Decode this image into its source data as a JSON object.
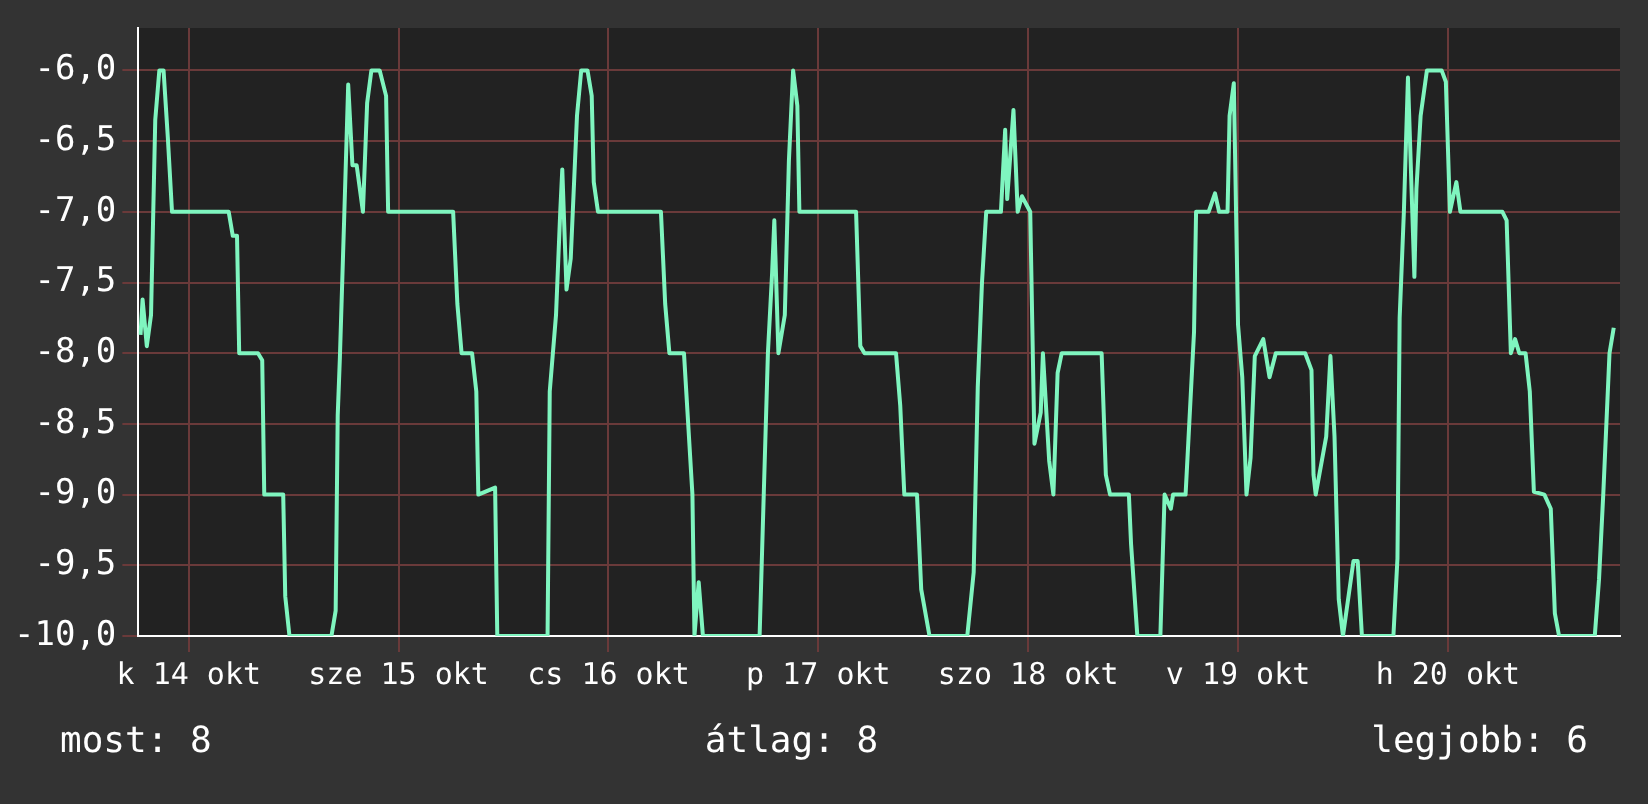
{
  "chart_data": {
    "type": "line",
    "x": [
      "--10-14T06:29",
      "--10-14T06:43",
      "--10-14T07:12",
      "--10-14T07:41",
      "--10-14T08:10",
      "--10-14T08:38",
      "--10-14T09:07",
      "--10-14T09:36",
      "--10-14T10:05",
      "--10-14T16:34",
      "--10-14T17:02",
      "--10-14T17:31",
      "--10-14T17:46",
      "--10-14T19:55",
      "--10-14T20:24",
      "--10-14T20:38",
      "--10-14T22:48",
      "--10-14T23:02",
      "--10-14T23:31",
      "--10-15T04:19",
      "--10-15T04:48",
      "--10-15T05:02",
      "--10-15T05:17",
      "--10-15T05:46",
      "--10-15T06:14",
      "--10-15T06:43",
      "--10-15T07:12",
      "--10-15T07:55",
      "--10-15T08:24",
      "--10-15T08:53",
      "--10-15T09:50",
      "--10-15T10:34",
      "--10-15T10:48",
      "--10-15T18:14",
      "--10-15T18:43",
      "--10-15T19:12",
      "--10-15T20:24",
      "--10-15T20:53",
      "--10-15T21:07",
      "--10-15T23:02",
      "--10-15T23:17",
      "--10-16T05:02",
      "--10-16T05:17",
      "--10-16T06:00",
      "--10-16T06:29",
      "--10-16T06:43",
      "--10-16T07:12",
      "--10-16T07:41",
      "--10-16T08:24",
      "--10-16T08:53",
      "--10-16T09:36",
      "--10-16T10:05",
      "--10-16T10:19",
      "--10-16T10:48",
      "--10-16T18:00",
      "--10-16T18:29",
      "--10-16T18:58",
      "--10-16T20:38",
      "--10-16T21:36",
      "--10-16T21:50",
      "--10-16T22:19",
      "--10-16T22:48",
      "--10-17T05:17",
      "--10-17T05:46",
      "--10-17T06:14",
      "--10-17T06:43",
      "--10-17T06:58",
      "--10-17T07:26",
      "--10-17T08:10",
      "--10-17T08:38",
      "--10-17T09:07",
      "--10-17T09:36",
      "--10-17T09:50",
      "--10-17T16:19",
      "--10-17T16:48",
      "--10-17T17:17",
      "--10-17T20:53",
      "--10-17T21:22",
      "--10-17T21:50",
      "--10-17T23:17",
      "--10-17T23:46",
      "--10-18T00:43",
      "--10-18T05:02",
      "--10-18T05:46",
      "--10-18T06:14",
      "--10-18T06:43",
      "--10-18T07:12",
      "--10-18T08:53",
      "--10-18T09:22",
      "--10-18T09:36",
      "--10-18T10:19",
      "--10-18T10:48",
      "--10-18T11:17",
      "--10-18T12:14",
      "--10-18T12:43",
      "--10-18T13:26",
      "--10-18T13:41",
      "--10-18T14:24",
      "--10-18T14:53",
      "--10-18T15:22",
      "--10-18T15:50",
      "--10-18T20:24",
      "--10-18T20:53",
      "--10-18T21:22",
      "--10-18T23:31",
      "--10-18T23:46",
      "--10-19T00:29",
      "--10-19T03:07",
      "--10-19T03:36",
      "--10-19T04:19",
      "--10-19T04:34",
      "--10-19T06:00",
      "--10-19T06:58",
      "--10-19T07:12",
      "--10-19T08:38",
      "--10-19T09:22",
      "--10-19T09:50",
      "--10-19T10:48",
      "--10-19T11:02",
      "--10-19T11:31",
      "--10-19T12:00",
      "--10-19T12:29",
      "--10-19T12:58",
      "--10-19T13:26",
      "--10-19T13:55",
      "--10-19T14:53",
      "--10-19T15:36",
      "--10-19T16:19",
      "--10-19T19:41",
      "--10-19T20:24",
      "--10-19T20:38",
      "--10-19T20:53",
      "--10-19T22:05",
      "--10-19T22:34",
      "--10-19T23:02",
      "--10-19T23:31",
      "--10-20T00:00",
      "--10-20T01:12",
      "--10-20T01:41",
      "--10-20T02:10",
      "--10-20T05:46",
      "--10-20T06:14",
      "--10-20T06:29",
      "--10-20T06:58",
      "--10-20T07:26",
      "--10-20T08:10",
      "--10-20T08:24",
      "--10-20T08:53",
      "--10-20T09:36",
      "--10-20T11:17",
      "--10-20T11:46",
      "--10-20T12:14",
      "--10-20T12:58",
      "--10-20T13:26",
      "--10-20T18:14",
      "--10-20T18:43",
      "--10-20T19:12",
      "--10-20T19:41",
      "--10-20T20:10",
      "--10-20T20:53",
      "--10-20T21:22",
      "--10-20T21:50",
      "--10-20T23:02",
      "--10-20T23:46",
      "--10-21T00:14",
      "--10-21T00:43",
      "--10-21T04:48",
      "--10-21T05:17",
      "--10-21T05:46",
      "--10-21T06:29",
      "--10-21T06:58"
    ],
    "values": [
      -7.87,
      -7.62,
      -7.95,
      -7.73,
      -6.35,
      -6.0,
      -6.0,
      -6.47,
      -7.0,
      -7.0,
      -7.17,
      -7.17,
      -8.0,
      -8.0,
      -8.05,
      -9.0,
      -9.0,
      -9.72,
      -10,
      -10,
      -9.82,
      -8.44,
      -8.03,
      -7.06,
      -6.1,
      -6.67,
      -6.67,
      -7.0,
      -6.23,
      -6.0,
      -6.0,
      -6.18,
      -7.0,
      -7.0,
      -7.65,
      -8.0,
      -8.0,
      -8.27,
      -9.0,
      -8.95,
      -10,
      -10,
      -8.27,
      -7.73,
      -7.0,
      -6.7,
      -7.55,
      -7.33,
      -6.32,
      -6.0,
      -6.0,
      -6.18,
      -6.79,
      -7.0,
      -7.0,
      -7.65,
      -8.0,
      -8.0,
      -9.0,
      -10,
      -9.62,
      -10,
      -10,
      -8.98,
      -8.0,
      -7.43,
      -7.06,
      -8.0,
      -7.73,
      -6.64,
      -6.0,
      -6.25,
      -7.0,
      -7.0,
      -7.95,
      -8.0,
      -8.0,
      -8.37,
      -9.0,
      -9.0,
      -9.67,
      -10,
      -10,
      -9.55,
      -8.24,
      -7.5,
      -7.0,
      -7.0,
      -6.42,
      -6.91,
      -6.28,
      -7.0,
      -6.89,
      -7.0,
      -8.64,
      -8.42,
      -8.0,
      -8.76,
      -9.0,
      -8.14,
      -8.0,
      -8.0,
      -8.86,
      -9.0,
      -9.0,
      -9.35,
      -10,
      -10,
      -9.0,
      -9.1,
      -9.0,
      -9.0,
      -7.85,
      -7.0,
      -7.0,
      -6.87,
      -7.0,
      -7.0,
      -6.32,
      -6.09,
      -7.8,
      -8.17,
      -9.0,
      -8.74,
      -8.02,
      -7.9,
      -8.17,
      -8.0,
      -8.0,
      -8.12,
      -8.86,
      -9.0,
      -8.59,
      -8.02,
      -8.59,
      -9.74,
      -10,
      -9.47,
      -9.47,
      -10,
      -10,
      -9.45,
      -7.75,
      -7.0,
      -6.05,
      -7.46,
      -6.84,
      -6.32,
      -6.0,
      -6.0,
      -6.08,
      -7.0,
      -6.79,
      -7.0,
      -7.0,
      -7.06,
      -8.0,
      -7.9,
      -8.0,
      -8.0,
      -8.27,
      -8.98,
      -9.0,
      -9.1,
      -9.84,
      -10,
      -10,
      -9.6,
      -9.0,
      -8.0,
      -7.82
    ],
    "color": "#7ff5bf",
    "xlim": [
      "--10-14T06:14",
      "--10-21T07:41"
    ],
    "xticks": [
      {
        "value": "--10-14T12:00",
        "label": "k 14 okt"
      },
      {
        "value": "--10-15T12:00",
        "label": "sze 15 okt"
      },
      {
        "value": "--10-16T12:00",
        "label": "cs 16 okt"
      },
      {
        "value": "--10-17T12:00",
        "label": "p 17 okt"
      },
      {
        "value": "--10-18T12:00",
        "label": "szo 18 okt"
      },
      {
        "value": "--10-19T12:00",
        "label": "v 19 okt"
      },
      {
        "value": "--10-20T12:00",
        "label": "h 20 okt"
      }
    ],
    "ylim": [
      -10,
      -5.7
    ],
    "yticks": [
      {
        "value": -10,
        "label": "-10,0"
      },
      {
        "value": -9.5,
        "label": "-9,5"
      },
      {
        "value": -9,
        "label": "-9,0"
      },
      {
        "value": -8.5,
        "label": "-8,5"
      },
      {
        "value": -8,
        "label": "-8,0"
      },
      {
        "value": -7.5,
        "label": "-7,5"
      },
      {
        "value": -7,
        "label": "-7,0"
      },
      {
        "value": -6.5,
        "label": "-6,5"
      },
      {
        "value": -6,
        "label": "-6,0"
      }
    ],
    "grid": true,
    "annotations": [
      "most: 8",
      "átlag: 8",
      "legjobb: 6"
    ]
  }
}
